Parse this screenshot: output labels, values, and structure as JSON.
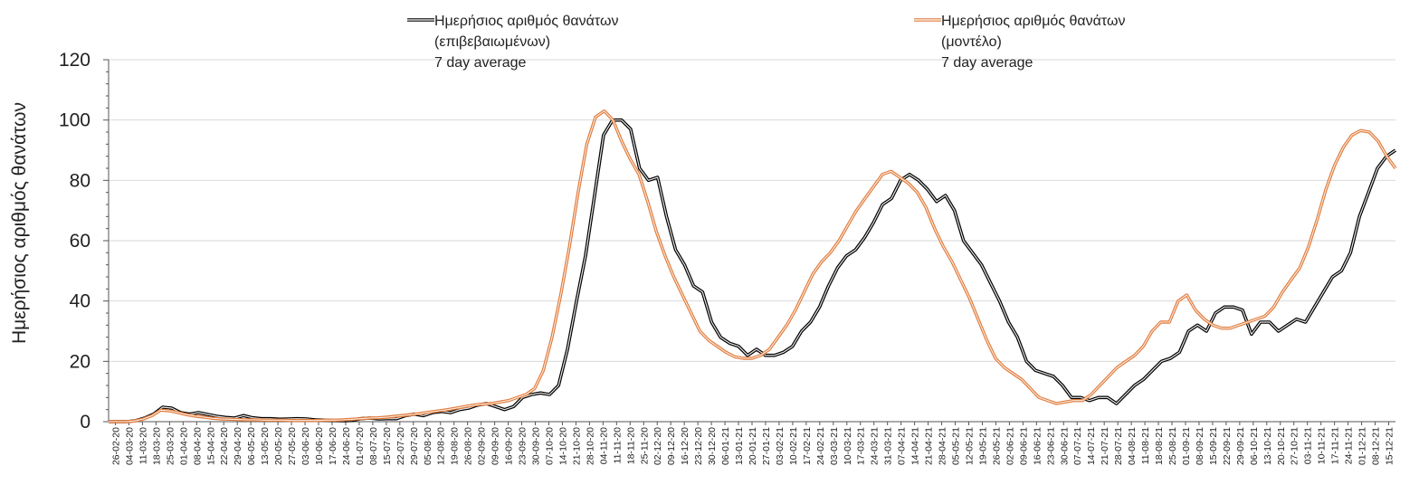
{
  "chart_data": {
    "type": "line",
    "title": "",
    "xlabel": "",
    "ylabel": "Ημερήσιος αριθμός θανάτων",
    "ylim": [
      0,
      120
    ],
    "yticks": [
      0,
      20,
      40,
      60,
      80,
      100,
      120
    ],
    "grid": true,
    "legend_position": "top",
    "x_tick_labels": [
      "26-02-20",
      "04-03-20",
      "11-03-20",
      "18-03-20",
      "25-03-20",
      "01-04-20",
      "08-04-20",
      "15-04-20",
      "22-04-20",
      "29-04-20",
      "06-05-20",
      "13-05-20",
      "20-05-20",
      "27-05-20",
      "03-06-20",
      "10-06-20",
      "17-06-20",
      "24-06-20",
      "01-07-20",
      "08-07-20",
      "15-07-20",
      "22-07-20",
      "29-07-20",
      "05-08-20",
      "12-08-20",
      "19-08-20",
      "26-08-20",
      "02-09-20",
      "09-09-20",
      "16-09-20",
      "23-09-20",
      "30-09-20",
      "07-10-20",
      "14-10-20",
      "21-10-20",
      "28-10-20",
      "04-11-20",
      "11-11-20",
      "18-11-20",
      "25-11-20",
      "02-12-20",
      "09-12-20",
      "16-12-20",
      "23-12-20",
      "30-12-20",
      "06-01-21",
      "13-01-21",
      "20-01-21",
      "27-01-21",
      "03-02-21",
      "10-02-21",
      "17-02-21",
      "24-02-21",
      "03-03-21",
      "10-03-21",
      "17-03-21",
      "24-03-21",
      "31-03-21",
      "07-04-21",
      "14-04-21",
      "21-04-21",
      "28-04-21",
      "05-05-21",
      "12-05-21",
      "19-05-21",
      "26-05-21",
      "02-06-21",
      "09-06-21",
      "16-06-21",
      "23-06-21",
      "30-06-21",
      "07-07-21",
      "14-07-21",
      "21-07-21",
      "28-07-21",
      "04-08-21",
      "11-08-21",
      "18-08-21",
      "25-08-21",
      "01-09-21",
      "08-09-21",
      "15-09-21",
      "22-09-21",
      "29-09-21",
      "06-10-21",
      "13-10-21",
      "20-10-21",
      "27-10-21",
      "03-11-21",
      "10-11-21",
      "17-11-21",
      "24-11-21",
      "01-12-21",
      "08-12-21",
      "15-12-21"
    ],
    "series": [
      {
        "name": "Ημερήσιος αριθμός θανάτων (επιβεβαιωμένων) 7 day average",
        "legend_lines": [
          "Ημερήσιος αριθμός θανάτων",
          "(επιβεβαιωμένων)",
          "7 day average"
        ],
        "color": "#000000",
        "style": "double-black",
        "values": [
          0,
          0,
          0,
          0.3,
          1.2,
          2.5,
          4.8,
          4.5,
          3.0,
          2.5,
          3.0,
          2.4,
          1.8,
          1.4,
          1.2,
          2.0,
          1.3,
          1.0,
          1.0,
          0.8,
          0.9,
          1.0,
          0.9,
          0.6,
          0.5,
          0.4,
          0.3,
          0.4,
          1.0,
          1.2,
          0.9,
          1.0,
          1.0,
          2.0,
          2.5,
          2.0,
          3.0,
          3.4,
          3.0,
          4.0,
          4.5,
          5.5,
          6.0,
          5.0,
          4.0,
          5.0,
          8.0,
          9.0,
          9.5,
          9.0,
          12.0,
          24.0,
          40.0,
          55.0,
          75.0,
          95.0,
          100.0,
          100.0,
          97.0,
          84.0,
          80.0,
          81.0,
          68.0,
          57.0,
          52.0,
          45.0,
          43.0,
          33.0,
          28.0,
          26.0,
          25.0,
          22.0,
          24.0,
          22.0,
          22.0,
          23.0,
          25.0,
          30.0,
          33.0,
          38.0,
          45.0,
          51.0,
          55.0,
          57.0,
          61.0,
          66.0,
          72.0,
          74.0,
          80.0,
          82.0,
          80.0,
          77.0,
          73.0,
          75.0,
          70.0,
          60.0,
          56.0,
          52.0,
          46.0,
          40.0,
          33.0,
          28.0,
          20.0,
          17.0,
          16.0,
          15.0,
          12.0,
          8.0,
          8.0,
          7.0,
          8.0,
          8.0,
          6.0,
          9.0,
          12.0,
          14.0,
          17.0,
          20.0,
          21.0,
          23.0,
          30.0,
          32.0,
          30.0,
          36.0,
          38.0,
          38.0,
          37.0,
          29.0,
          33.0,
          33.0,
          30.0,
          32.0,
          34.0,
          33.0,
          38.0,
          43.0,
          48.0,
          50.0,
          56.0,
          68.0,
          76.0,
          84.0,
          88.0,
          90.0
        ]
      },
      {
        "name": "Ημερήσιος αριθμός θανάτων (μοντέλο) 7 day average",
        "legend_lines": [
          "Ημερήσιος αριθμός θανάτων",
          "(μοντέλο)",
          "7 day average"
        ],
        "color": "#e07a3a",
        "style": "double-orange",
        "values": [
          0,
          0,
          0,
          0.2,
          0.9,
          2.0,
          3.8,
          3.6,
          3.0,
          2.3,
          1.8,
          1.5,
          1.1,
          0.9,
          0.8,
          0.7,
          0.6,
          0.6,
          0.5,
          0.5,
          0.5,
          0.4,
          0.4,
          0.4,
          0.4,
          0.5,
          0.5,
          0.6,
          0.8,
          1.0,
          1.2,
          1.3,
          1.5,
          1.8,
          2.1,
          2.4,
          2.8,
          3.2,
          3.6,
          4.0,
          4.5,
          5.0,
          5.5,
          5.8,
          6.0,
          6.5,
          7.0,
          8.0,
          9.0,
          11.0,
          17.0,
          28.0,
          42.0,
          58.0,
          76.0,
          92.0,
          101.0,
          103.0,
          100.0,
          93.0,
          87.0,
          82.0,
          73.0,
          63.0,
          55.0,
          48.0,
          42.0,
          36.0,
          30.0,
          27.0,
          25.0,
          23.0,
          21.5,
          21.0,
          21.0,
          22.0,
          24.0,
          28.0,
          32.0,
          37.0,
          43.0,
          49.0,
          53.0,
          56.0,
          60.0,
          65.0,
          70.0,
          74.0,
          78.0,
          82.0,
          83.0,
          81.0,
          79.0,
          76.0,
          71.0,
          64.0,
          58.0,
          53.0,
          47.0,
          41.0,
          34.0,
          27.0,
          21.0,
          18.0,
          16.0,
          14.0,
          11.0,
          8.0,
          7.0,
          6.0,
          6.5,
          7.0,
          7.0,
          9.0,
          12.0,
          15.0,
          18.0,
          20.0,
          22.0,
          25.0,
          30.0,
          33.0,
          33.0,
          40.0,
          42.0,
          37.0,
          34.0,
          32.0,
          31.0,
          31.0,
          32.0,
          33.0,
          34.0,
          35.0,
          38.0,
          43.0,
          47.0,
          51.0,
          58.0,
          67.0,
          77.0,
          85.0,
          91.0,
          95.0,
          96.5,
          96.0,
          93.0,
          88.0,
          84.0
        ]
      }
    ]
  }
}
